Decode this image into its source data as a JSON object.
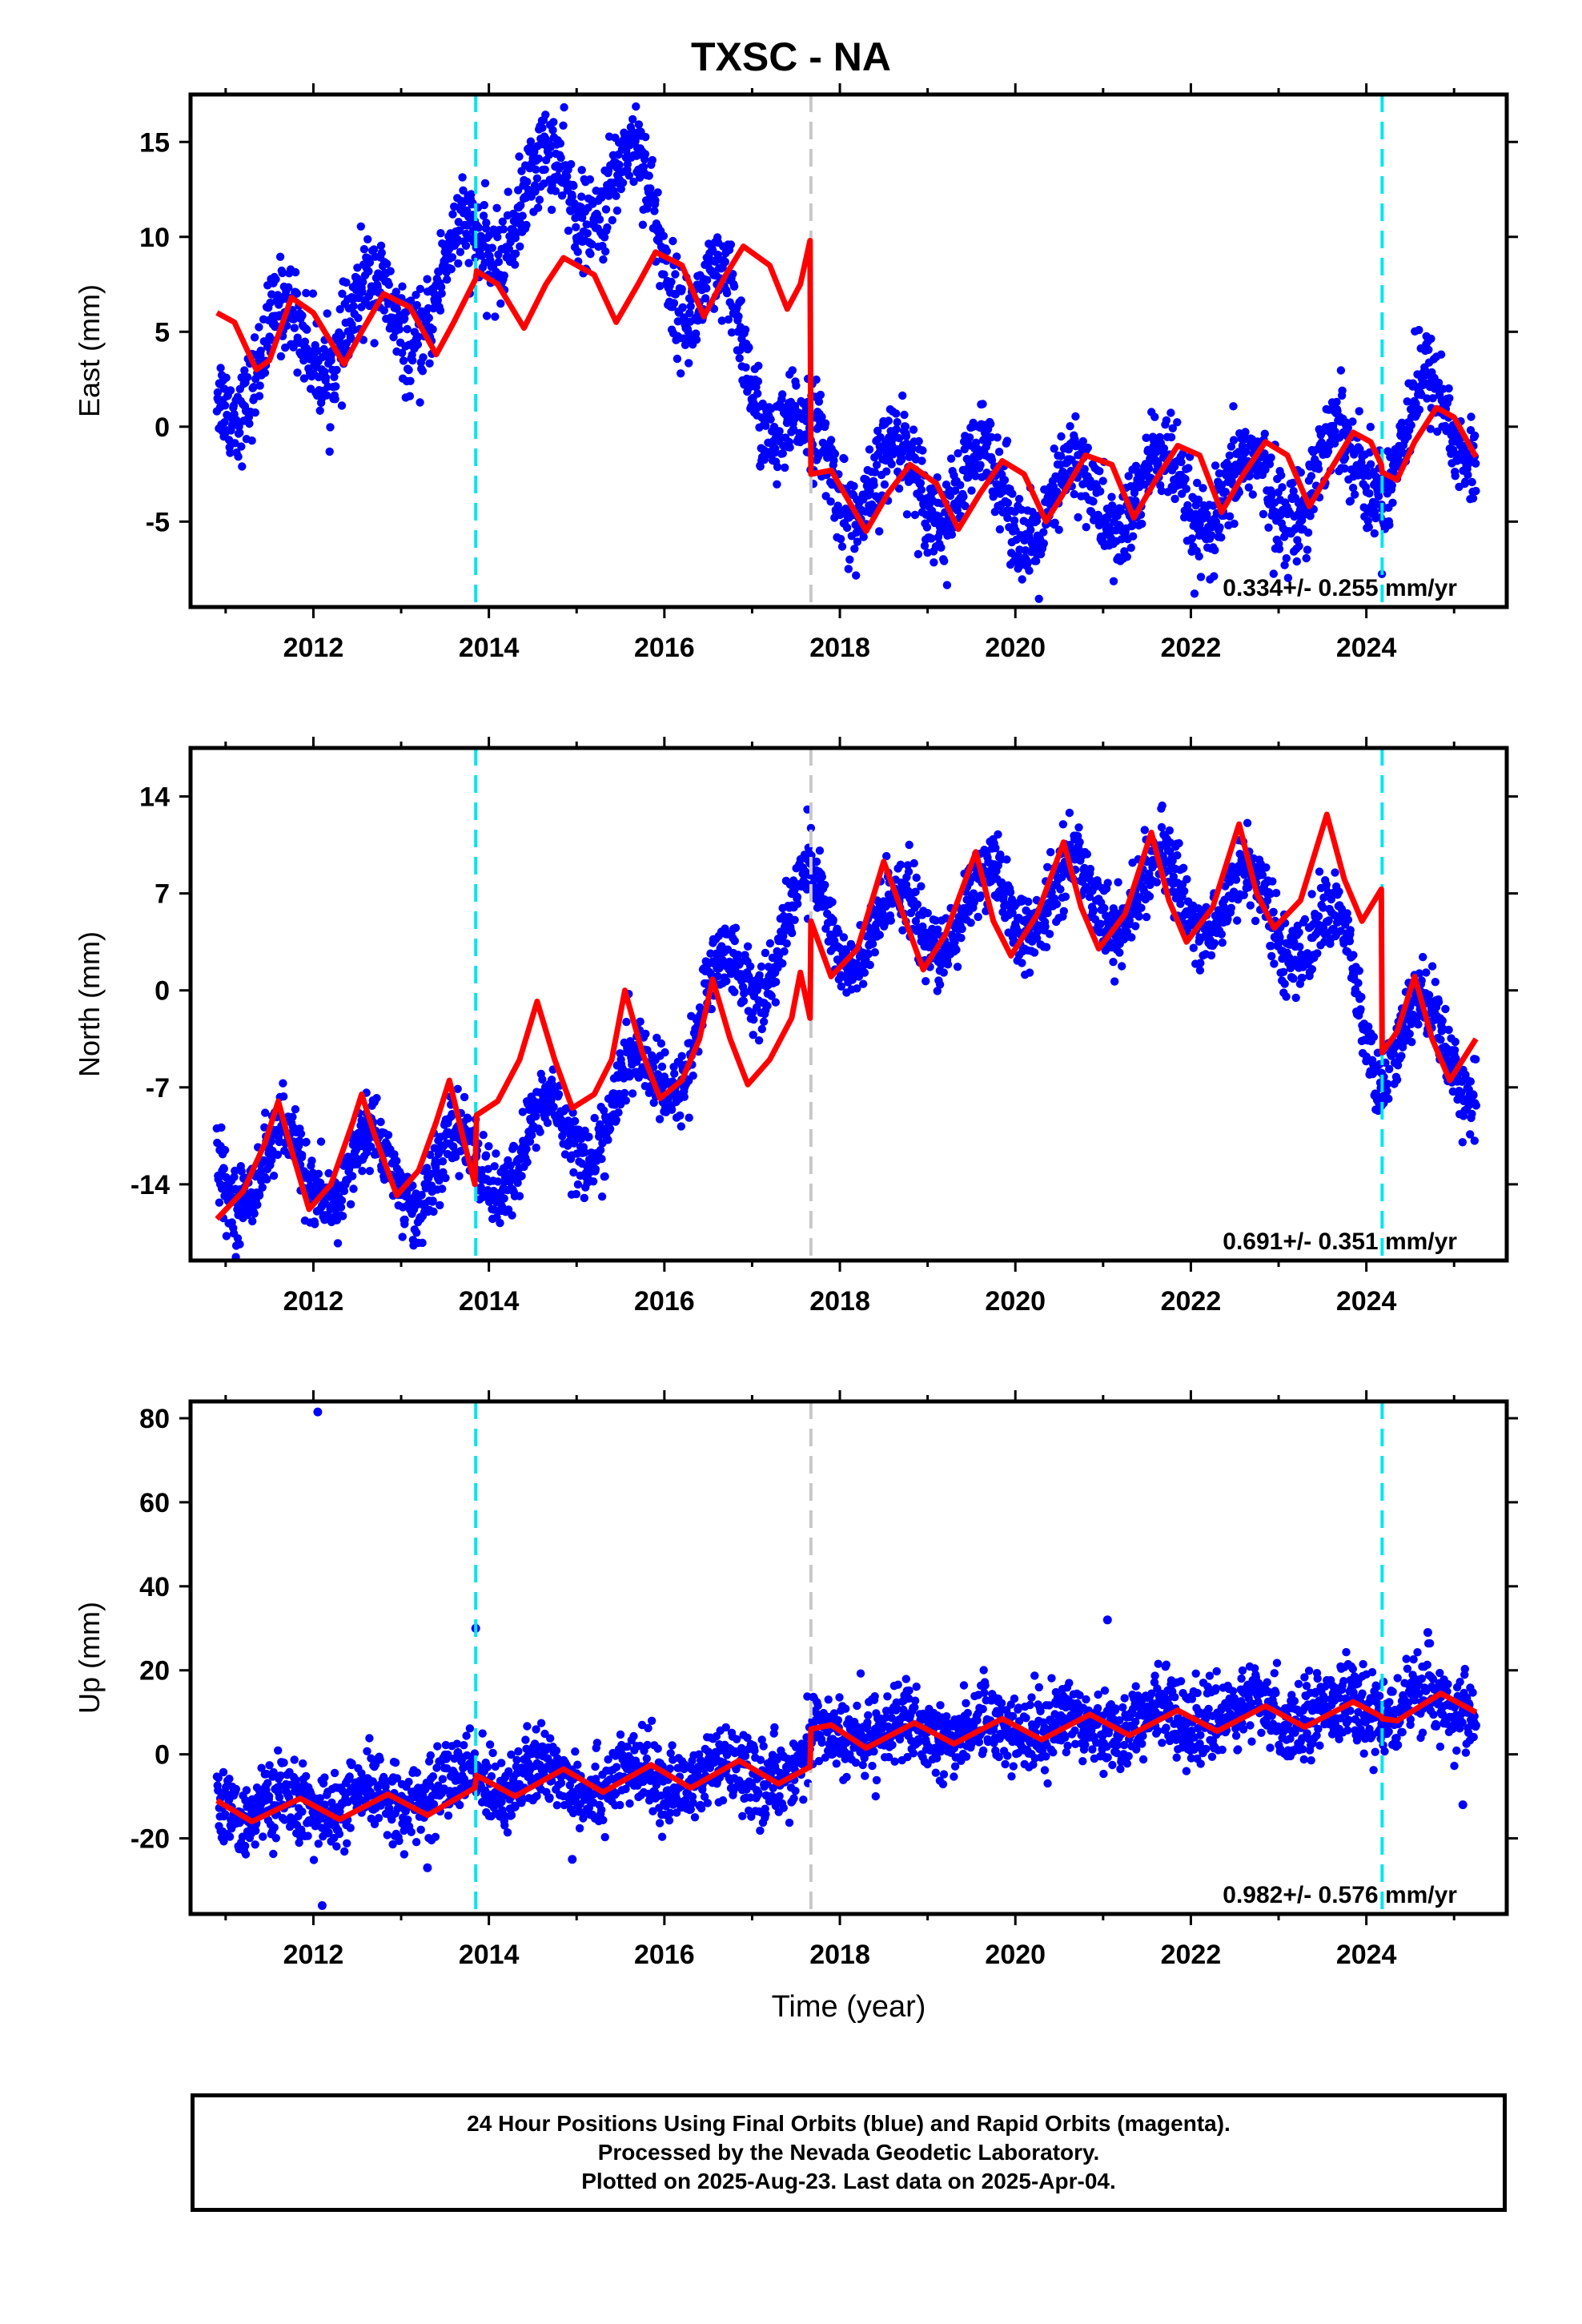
{
  "title": "TXSC - NA",
  "footer": {
    "line1": "24 Hour Positions Using Final Orbits (blue) and Rapid Orbits (magenta).",
    "line2": "Processed by the Nevada Geodetic Laboratory.",
    "line3": "Plotted on 2025-Aug-23. Last data on 2025-Apr-04."
  },
  "colors": {
    "points": "#0000ff",
    "model": "#ff0000",
    "cyan_line": "#00e5ee",
    "gray_line": "#c8c8c8",
    "frame": "#000000"
  },
  "chart_data": [
    {
      "type": "scatter",
      "component": "East",
      "ylabel": "East (mm)",
      "xlabel": "",
      "xlim": [
        2010.6,
        2025.6
      ],
      "ylim": [
        -9.5,
        17.5
      ],
      "xticks": [
        2012,
        2014,
        2016,
        2018,
        2020,
        2022,
        2024
      ],
      "yticks": [
        -5,
        0,
        5,
        10,
        15
      ],
      "vlines": [
        {
          "x": 2013.85,
          "color": "cyan"
        },
        {
          "x": 2017.67,
          "color": "gray"
        },
        {
          "x": 2024.18,
          "color": "cyan"
        }
      ],
      "rate_label": "0.334+/- 0.255 mm/yr",
      "scatter_series": {
        "name": "24 Hour Positions",
        "trend": [
          [
            2010.9,
            2.0
          ],
          [
            2011.5,
            4.0
          ],
          [
            2012.5,
            5.5
          ],
          [
            2013.3,
            6.5
          ],
          [
            2013.9,
            9.5
          ],
          [
            2014.3,
            12.0
          ],
          [
            2015.0,
            12.5
          ],
          [
            2015.7,
            12.8
          ],
          [
            2016.3,
            7.0
          ],
          [
            2016.8,
            5.0
          ],
          [
            2017.3,
            0.5
          ],
          [
            2017.7,
            -2.0
          ],
          [
            2018.3,
            -3.0
          ],
          [
            2019.3,
            -2.8
          ],
          [
            2020.3,
            -4.5
          ],
          [
            2021.0,
            -3.5
          ],
          [
            2022.0,
            -3.5
          ],
          [
            2022.6,
            -3.8
          ],
          [
            2023.4,
            -2.5
          ],
          [
            2024.2,
            -1.5
          ],
          [
            2024.8,
            1.0
          ],
          [
            2025.25,
            0.0
          ]
        ],
        "amplitude": 2.2,
        "noise": 1.2,
        "outliers": []
      },
      "model_series": {
        "name": "Model",
        "points": [
          [
            2010.9,
            6.0
          ],
          [
            2011.1,
            5.5
          ],
          [
            2011.35,
            3.0
          ],
          [
            2011.5,
            3.5
          ],
          [
            2011.75,
            6.8
          ],
          [
            2012.0,
            6.0
          ],
          [
            2012.35,
            3.3
          ],
          [
            2012.55,
            5.0
          ],
          [
            2012.8,
            7.0
          ],
          [
            2013.1,
            6.3
          ],
          [
            2013.4,
            3.8
          ],
          [
            2013.6,
            5.5
          ],
          [
            2013.85,
            7.8
          ],
          [
            2013.86,
            8.2
          ],
          [
            2014.1,
            7.5
          ],
          [
            2014.4,
            5.2
          ],
          [
            2014.65,
            7.5
          ],
          [
            2014.85,
            8.9
          ],
          [
            2015.2,
            8.0
          ],
          [
            2015.45,
            5.5
          ],
          [
            2015.7,
            7.5
          ],
          [
            2015.9,
            9.2
          ],
          [
            2016.2,
            8.5
          ],
          [
            2016.45,
            5.8
          ],
          [
            2016.7,
            8.0
          ],
          [
            2016.9,
            9.5
          ],
          [
            2017.2,
            8.5
          ],
          [
            2017.4,
            6.2
          ],
          [
            2017.55,
            7.5
          ],
          [
            2017.66,
            9.8
          ],
          [
            2017.67,
            -2.5
          ],
          [
            2017.9,
            -2.3
          ],
          [
            2018.3,
            -5.5
          ],
          [
            2018.55,
            -3.5
          ],
          [
            2018.8,
            -2.0
          ],
          [
            2019.1,
            -3.0
          ],
          [
            2019.35,
            -5.4
          ],
          [
            2019.6,
            -3.5
          ],
          [
            2019.85,
            -1.8
          ],
          [
            2020.1,
            -2.5
          ],
          [
            2020.35,
            -5.0
          ],
          [
            2020.55,
            -3.5
          ],
          [
            2020.8,
            -1.5
          ],
          [
            2021.1,
            -2.0
          ],
          [
            2021.35,
            -4.8
          ],
          [
            2021.6,
            -2.8
          ],
          [
            2021.85,
            -1.0
          ],
          [
            2022.1,
            -1.5
          ],
          [
            2022.35,
            -4.5
          ],
          [
            2022.6,
            -2.5
          ],
          [
            2022.85,
            -0.8
          ],
          [
            2023.1,
            -1.5
          ],
          [
            2023.35,
            -4.2
          ],
          [
            2023.6,
            -2.2
          ],
          [
            2023.85,
            -0.3
          ],
          [
            2024.05,
            -0.8
          ],
          [
            2024.17,
            -2.0
          ],
          [
            2024.18,
            -2.4
          ],
          [
            2024.35,
            -2.8
          ],
          [
            2024.55,
            -0.8
          ],
          [
            2024.8,
            1.0
          ],
          [
            2025.0,
            0.5
          ],
          [
            2025.25,
            -1.6
          ]
        ]
      }
    },
    {
      "type": "scatter",
      "component": "North",
      "ylabel": "North (mm)",
      "xlabel": "",
      "xlim": [
        2010.6,
        2025.6
      ],
      "ylim": [
        -19.5,
        17.5
      ],
      "xticks": [
        2012,
        2014,
        2016,
        2018,
        2020,
        2022,
        2024
      ],
      "yticks": [
        -14,
        -7,
        0,
        7,
        14
      ],
      "vlines": [
        {
          "x": 2013.85,
          "color": "cyan"
        },
        {
          "x": 2017.67,
          "color": "gray"
        },
        {
          "x": 2024.18,
          "color": "cyan"
        }
      ],
      "rate_label": "0.691+/- 0.351 mm/yr",
      "scatter_series": {
        "name": "24 Hour Positions",
        "trend": [
          [
            2010.9,
            -12.5
          ],
          [
            2011.8,
            -13.0
          ],
          [
            2012.8,
            -13.0
          ],
          [
            2013.85,
            -13.0
          ],
          [
            2014.5,
            -11.0
          ],
          [
            2015.2,
            -9.5
          ],
          [
            2016.0,
            -6.0
          ],
          [
            2016.5,
            -1.0
          ],
          [
            2017.0,
            1.5
          ],
          [
            2017.5,
            6.0
          ],
          [
            2017.67,
            6.0
          ],
          [
            2018.0,
            4.0
          ],
          [
            2019.0,
            5.0
          ],
          [
            2020.0,
            6.5
          ],
          [
            2021.0,
            7.0
          ],
          [
            2022.0,
            7.0
          ],
          [
            2022.7,
            6.0
          ],
          [
            2023.3,
            4.5
          ],
          [
            2023.7,
            3.0
          ],
          [
            2024.1,
            -4.0
          ],
          [
            2024.6,
            -3.0
          ],
          [
            2025.25,
            -5.0
          ]
        ],
        "amplitude": 2.8,
        "noise": 1.3,
        "outliers": []
      },
      "model_series": {
        "name": "Model",
        "points": [
          [
            2010.9,
            -16.5
          ],
          [
            2011.2,
            -14.5
          ],
          [
            2011.45,
            -11.0
          ],
          [
            2011.6,
            -8.0
          ],
          [
            2011.75,
            -11.5
          ],
          [
            2011.95,
            -15.8
          ],
          [
            2012.2,
            -14.0
          ],
          [
            2012.45,
            -9.5
          ],
          [
            2012.55,
            -7.5
          ],
          [
            2012.7,
            -10.5
          ],
          [
            2012.95,
            -14.8
          ],
          [
            2013.2,
            -13.0
          ],
          [
            2013.4,
            -9.5
          ],
          [
            2013.55,
            -6.5
          ],
          [
            2013.7,
            -10.5
          ],
          [
            2013.84,
            -14.0
          ],
          [
            2013.86,
            -9.0
          ],
          [
            2014.1,
            -8.0
          ],
          [
            2014.35,
            -5.0
          ],
          [
            2014.55,
            -0.8
          ],
          [
            2014.75,
            -5.0
          ],
          [
            2014.95,
            -8.5
          ],
          [
            2015.2,
            -7.5
          ],
          [
            2015.4,
            -5.0
          ],
          [
            2015.55,
            0.0
          ],
          [
            2015.75,
            -4.5
          ],
          [
            2015.95,
            -7.8
          ],
          [
            2016.2,
            -6.5
          ],
          [
            2016.4,
            -3.5
          ],
          [
            2016.55,
            0.8
          ],
          [
            2016.75,
            -3.5
          ],
          [
            2016.95,
            -6.8
          ],
          [
            2017.2,
            -5.0
          ],
          [
            2017.45,
            -2.0
          ],
          [
            2017.55,
            1.3
          ],
          [
            2017.66,
            -2.0
          ],
          [
            2017.67,
            5.0
          ],
          [
            2017.9,
            1.0
          ],
          [
            2018.2,
            3.0
          ],
          [
            2018.5,
            9.3
          ],
          [
            2018.75,
            5.0
          ],
          [
            2018.95,
            1.5
          ],
          [
            2019.2,
            4.0
          ],
          [
            2019.55,
            10.0
          ],
          [
            2019.75,
            5.0
          ],
          [
            2019.95,
            2.5
          ],
          [
            2020.25,
            5.5
          ],
          [
            2020.55,
            10.7
          ],
          [
            2020.75,
            6.0
          ],
          [
            2020.95,
            3.0
          ],
          [
            2021.25,
            5.5
          ],
          [
            2021.55,
            11.4
          ],
          [
            2021.75,
            6.5
          ],
          [
            2021.95,
            3.5
          ],
          [
            2022.25,
            6.0
          ],
          [
            2022.55,
            12.0
          ],
          [
            2022.75,
            7.0
          ],
          [
            2022.95,
            4.5
          ],
          [
            2023.25,
            6.5
          ],
          [
            2023.55,
            12.7
          ],
          [
            2023.75,
            8.0
          ],
          [
            2023.95,
            5.0
          ],
          [
            2024.17,
            7.3
          ],
          [
            2024.18,
            -4.5
          ],
          [
            2024.35,
            -3.0
          ],
          [
            2024.55,
            1.0
          ],
          [
            2024.75,
            -3.5
          ],
          [
            2024.95,
            -6.5
          ],
          [
            2025.25,
            -3.5
          ]
        ]
      }
    },
    {
      "type": "scatter",
      "component": "Up",
      "ylabel": "Up (mm)",
      "xlabel": "Time (year)",
      "xlim": [
        2010.6,
        2025.6
      ],
      "ylim": [
        -38,
        84
      ],
      "xticks": [
        2012,
        2014,
        2016,
        2018,
        2020,
        2022,
        2024
      ],
      "yticks": [
        -20,
        0,
        20,
        40,
        60,
        80
      ],
      "vlines": [
        {
          "x": 2013.85,
          "color": "cyan"
        },
        {
          "x": 2017.67,
          "color": "gray"
        },
        {
          "x": 2024.18,
          "color": "cyan"
        }
      ],
      "rate_label": "0.982+/- 0.576 mm/yr",
      "scatter_series": {
        "name": "24 Hour Positions",
        "trend": [
          [
            2010.9,
            -12.5
          ],
          [
            2012.0,
            -12.5
          ],
          [
            2013.0,
            -10.5
          ],
          [
            2013.85,
            -6.0
          ],
          [
            2014.5,
            -5.5
          ],
          [
            2015.5,
            -6.5
          ],
          [
            2016.5,
            -5.5
          ],
          [
            2017.66,
            -3.5
          ],
          [
            2017.7,
            5.5
          ],
          [
            2019.0,
            5.0
          ],
          [
            2020.0,
            6.5
          ],
          [
            2021.0,
            7.5
          ],
          [
            2022.0,
            9.0
          ],
          [
            2023.0,
            10.0
          ],
          [
            2024.0,
            11.0
          ],
          [
            2025.25,
            12.0
          ]
        ],
        "amplitude": 2.5,
        "noise": 4.5,
        "outliers": [
          [
            2012.05,
            81.5
          ],
          [
            2013.85,
            30.0
          ],
          [
            2012.1,
            -36.0
          ],
          [
            2021.05,
            32.0
          ],
          [
            2024.7,
            29.0
          ],
          [
            2025.1,
            -12.0
          ],
          [
            2014.95,
            -25.0
          ],
          [
            2013.3,
            -27.0
          ]
        ]
      },
      "model_series": {
        "name": "Model",
        "points": [
          [
            2010.9,
            -11.0
          ],
          [
            2011.3,
            -16.0
          ],
          [
            2011.85,
            -10.5
          ],
          [
            2012.3,
            -15.5
          ],
          [
            2012.85,
            -9.5
          ],
          [
            2013.3,
            -14.5
          ],
          [
            2013.84,
            -8.0
          ],
          [
            2013.86,
            -5.0
          ],
          [
            2014.3,
            -10.0
          ],
          [
            2014.85,
            -3.5
          ],
          [
            2015.3,
            -9.0
          ],
          [
            2015.85,
            -2.5
          ],
          [
            2016.3,
            -8.0
          ],
          [
            2016.85,
            -1.5
          ],
          [
            2017.3,
            -7.0
          ],
          [
            2017.66,
            -3.0
          ],
          [
            2017.67,
            6.0
          ],
          [
            2017.9,
            7.0
          ],
          [
            2018.3,
            1.5
          ],
          [
            2018.85,
            7.5
          ],
          [
            2019.3,
            2.5
          ],
          [
            2019.85,
            8.5
          ],
          [
            2020.3,
            3.5
          ],
          [
            2020.85,
            9.5
          ],
          [
            2021.3,
            4.5
          ],
          [
            2021.85,
            10.5
          ],
          [
            2022.3,
            5.5
          ],
          [
            2022.85,
            11.5
          ],
          [
            2023.3,
            6.5
          ],
          [
            2023.85,
            12.5
          ],
          [
            2024.17,
            9.0
          ],
          [
            2024.18,
            8.5
          ],
          [
            2024.35,
            8.0
          ],
          [
            2024.85,
            14.5
          ],
          [
            2025.25,
            10.0
          ]
        ]
      }
    }
  ]
}
